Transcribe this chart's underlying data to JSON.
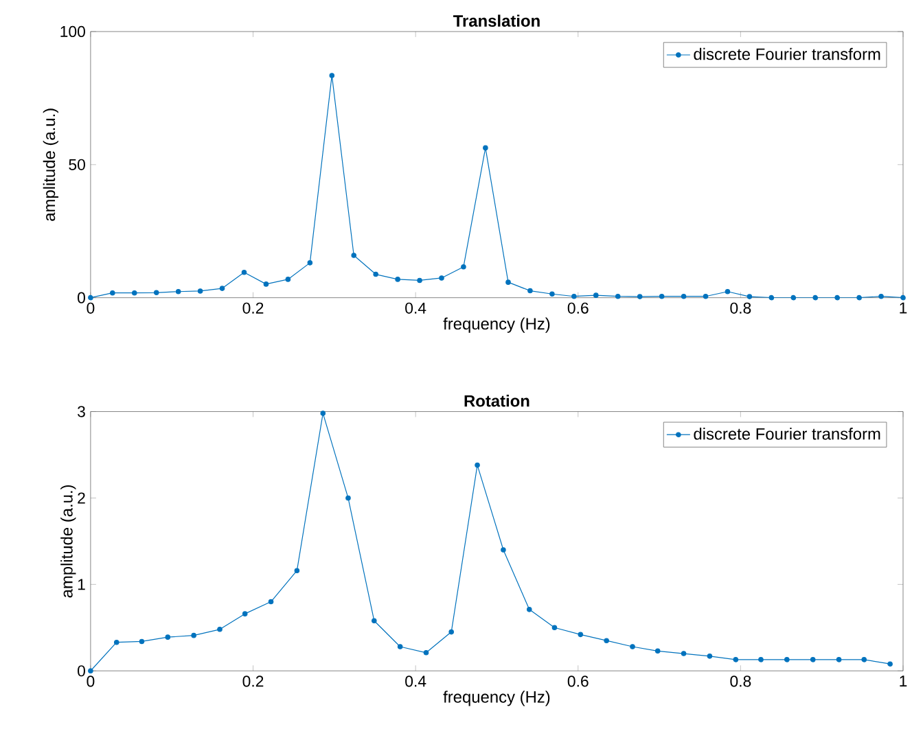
{
  "chart_data": [
    {
      "type": "line",
      "title": "Translation",
      "xlabel": "frequency (Hz)",
      "ylabel": "amplitude (a.u.)",
      "x": [
        0,
        0.027,
        0.054,
        0.081,
        0.108,
        0.135,
        0.162,
        0.189,
        0.216,
        0.243,
        0.27,
        0.297,
        0.324,
        0.351,
        0.378,
        0.405,
        0.432,
        0.459,
        0.486,
        0.514,
        0.541,
        0.568,
        0.595,
        0.622,
        0.649,
        0.676,
        0.703,
        0.73,
        0.757,
        0.784,
        0.811,
        0.838,
        0.865,
        0.892,
        0.919,
        0.946,
        0.973,
        1.0
      ],
      "series": [
        {
          "name": "discrete Fourier transform",
          "color": "#0072bd",
          "values": [
            0,
            1.8,
            1.8,
            1.9,
            2.3,
            2.5,
            3.5,
            9.5,
            5.1,
            6.9,
            13.1,
            83.5,
            15.9,
            8.8,
            6.9,
            6.5,
            7.4,
            11.6,
            56.3,
            5.8,
            2.6,
            1.4,
            0.5,
            0.9,
            0.5,
            0.4,
            0.5,
            0.5,
            0.5,
            2.3,
            0.4,
            0,
            0,
            0,
            0,
            0,
            0.5,
            0
          ]
        }
      ],
      "xlim": [
        0,
        1
      ],
      "ylim": [
        0,
        100
      ],
      "xticks": [
        0,
        0.2,
        0.4,
        0.6,
        0.8,
        1
      ],
      "yticks": [
        0,
        50,
        100
      ],
      "grid": false,
      "legend": "top right",
      "marker": "circle",
      "line_style": "solid"
    },
    {
      "type": "line",
      "title": "Rotation",
      "xlabel": "frequency (Hz)",
      "ylabel": "amplitude (a.u.)",
      "x": [
        0,
        0.032,
        0.063,
        0.095,
        0.127,
        0.159,
        0.19,
        0.222,
        0.254,
        0.286,
        0.317,
        0.349,
        0.381,
        0.413,
        0.444,
        0.476,
        0.508,
        0.54,
        0.571,
        0.603,
        0.635,
        0.667,
        0.698,
        0.73,
        0.762,
        0.794,
        0.825,
        0.857,
        0.889,
        0.921,
        0.952,
        0.984
      ],
      "series": [
        {
          "name": "discrete Fourier transform",
          "color": "#0072bd",
          "values": [
            0,
            0.33,
            0.34,
            0.39,
            0.41,
            0.48,
            0.66,
            0.8,
            1.16,
            2.98,
            2.0,
            0.58,
            0.28,
            0.21,
            0.45,
            2.38,
            1.4,
            0.71,
            0.5,
            0.42,
            0.35,
            0.28,
            0.23,
            0.2,
            0.17,
            0.13,
            0.13,
            0.13,
            0.13,
            0.13,
            0.13,
            0.08
          ]
        }
      ],
      "xlim": [
        0,
        1
      ],
      "ylim": [
        0,
        3
      ],
      "xticks": [
        0,
        0.2,
        0.4,
        0.6,
        0.8,
        1
      ],
      "yticks": [
        0,
        1,
        2,
        3
      ],
      "grid": false,
      "legend": "top right",
      "marker": "circle",
      "line_style": "solid"
    }
  ]
}
